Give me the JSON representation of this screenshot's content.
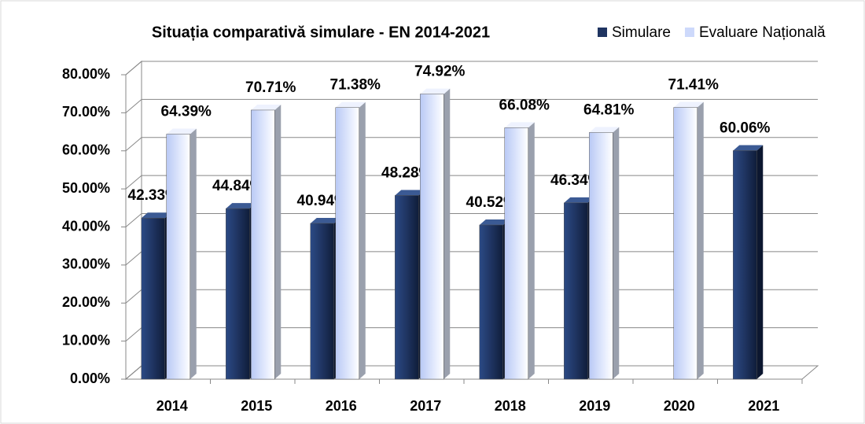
{
  "chart_data": {
    "type": "bar3d",
    "title": "Situația comparativă simulare - EN 2014-2021",
    "categories": [
      "2014",
      "2015",
      "2016",
      "2017",
      "2018",
      "2019",
      "2020",
      "2021"
    ],
    "series": [
      {
        "name": "Simulare",
        "color": "#1f3461",
        "values": [
          42.33,
          44.84,
          40.94,
          48.28,
          40.52,
          46.34,
          null,
          60.06
        ],
        "value_labels": [
          "42.33%",
          "44.84%",
          "40.94%",
          "48.28%",
          "40.52%",
          "46.34%",
          null,
          "60.06%"
        ]
      },
      {
        "name": "Evaluare Națională",
        "color": "#cdd9fb",
        "values": [
          64.39,
          70.71,
          71.38,
          74.92,
          66.08,
          64.81,
          71.41,
          null
        ],
        "value_labels": [
          "64.39%",
          "70.71%",
          "71.38%",
          "74.92%",
          "66.08%",
          "64.81%",
          "71.41%",
          null
        ]
      }
    ],
    "ylim": [
      0,
      80
    ],
    "yticks": [
      {
        "value": 0,
        "label": "0.00%"
      },
      {
        "value": 10,
        "label": "10.00%"
      },
      {
        "value": 20,
        "label": "20.00%"
      },
      {
        "value": 30,
        "label": "30.00%"
      },
      {
        "value": 40,
        "label": "40.00%"
      },
      {
        "value": 50,
        "label": "50.00%"
      },
      {
        "value": 60,
        "label": "60.00%"
      },
      {
        "value": 70,
        "label": "70.00%"
      },
      {
        "value": 80,
        "label": "80.00%"
      }
    ],
    "grid": true,
    "legend": "top-right"
  }
}
